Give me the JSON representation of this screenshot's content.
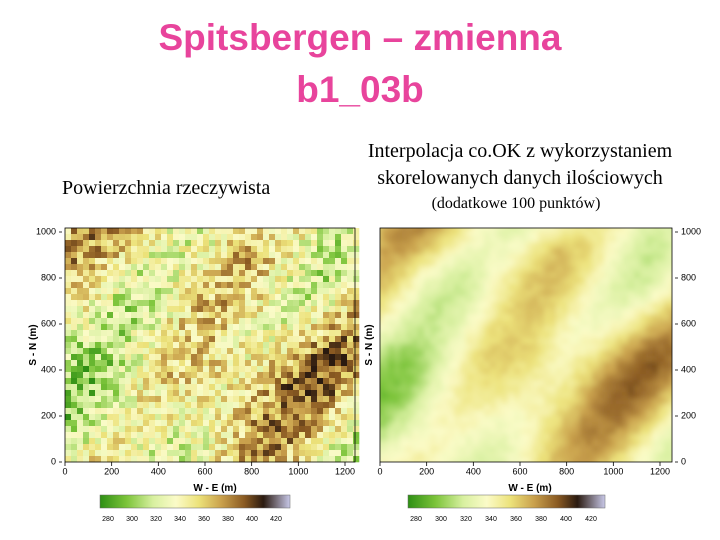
{
  "title": [
    "Spitsbergen – zmienna",
    "b1_03b"
  ],
  "left_panel": {
    "caption": "Powierzchnia rzeczywista",
    "y_label": "S - N (m)",
    "x_label": "W - E (m)",
    "yticks": [
      0,
      200,
      400,
      600,
      800,
      1000
    ],
    "xticks": [
      0,
      200,
      400,
      600,
      800,
      1000,
      1200
    ],
    "colorbar_ticks": [
      280,
      300,
      320,
      340,
      360,
      380,
      400,
      420
    ]
  },
  "right_panel": {
    "caption": [
      "Interpolacja co.OK z wykorzystaniem",
      "skorelowanych danych ilościowych"
    ],
    "note": "(dodatkowe 100 punktów)",
    "y_label": "S - N (m)",
    "x_label": "W - E (m)",
    "yticks": [
      0,
      200,
      400,
      600,
      800,
      1000
    ],
    "xticks": [
      0,
      200,
      400,
      600,
      800,
      1000,
      1200
    ],
    "colorbar_ticks": [
      280,
      300,
      320,
      340,
      360,
      380,
      400,
      420
    ]
  }
}
